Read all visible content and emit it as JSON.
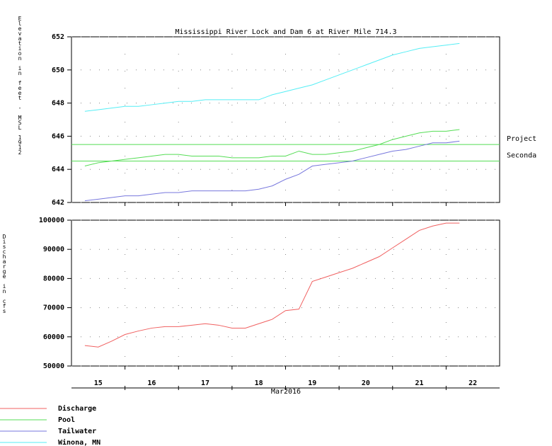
{
  "chart_data": [
    {
      "type": "line",
      "title": "Mississippi River Lock and Dam 6 at River Mile 714.3",
      "ylabel": "Elevation in feet - MSL 1912",
      "x": [
        15.25,
        15.5,
        15.75,
        16,
        16.25,
        16.5,
        16.75,
        17,
        17.25,
        17.5,
        17.75,
        18,
        18.25,
        18.5,
        18.75,
        19,
        19.25,
        19.5,
        19.75,
        20,
        20.25,
        20.5,
        20.75,
        21,
        21.25,
        21.5,
        21.75,
        22,
        22.25
      ],
      "xlim": [
        15,
        23
      ],
      "xminor": [
        16,
        17,
        18,
        19,
        20,
        21,
        22
      ],
      "ylim": [
        642,
        652
      ],
      "yticks": [
        642,
        644,
        646,
        648,
        650,
        652
      ],
      "grid": true,
      "hlines": [
        {
          "value": 645.5,
          "label": "Project"
        },
        {
          "value": 644.5,
          "label": "Seconda"
        }
      ],
      "hline_color": "#55dd55",
      "series": [
        {
          "name": "Pool",
          "color": "#55dd55",
          "values": [
            644.2,
            644.4,
            644.5,
            644.6,
            644.7,
            644.8,
            644.9,
            644.9,
            644.8,
            644.8,
            644.8,
            644.7,
            644.7,
            644.7,
            644.8,
            644.8,
            645.1,
            644.9,
            644.9,
            645.0,
            645.1,
            645.3,
            645.5,
            645.8,
            646.0,
            646.2,
            646.3,
            646.3,
            646.4
          ]
        },
        {
          "name": "Tailwater",
          "color": "#7777dd",
          "values": [
            642.1,
            642.2,
            642.3,
            642.4,
            642.4,
            642.5,
            642.6,
            642.6,
            642.7,
            642.7,
            642.7,
            642.7,
            642.7,
            642.8,
            643.0,
            643.4,
            643.7,
            644.2,
            644.3,
            644.4,
            644.5,
            644.7,
            644.9,
            645.1,
            645.2,
            645.4,
            645.6,
            645.6,
            645.7
          ]
        },
        {
          "name": "Winona, MN",
          "color": "#55eef5",
          "values": [
            647.5,
            647.6,
            647.7,
            647.8,
            647.8,
            647.9,
            648.0,
            648.1,
            648.1,
            648.2,
            648.2,
            648.2,
            648.2,
            648.2,
            648.5,
            648.7,
            648.9,
            649.1,
            649.4,
            649.7,
            650.0,
            650.3,
            650.6,
            650.9,
            651.1,
            651.3,
            651.4,
            651.5,
            651.6
          ]
        }
      ]
    },
    {
      "type": "line",
      "ylabel": "Discharge in cfs",
      "xlabel": "Mar2016",
      "x": [
        15.25,
        15.5,
        15.75,
        16,
        16.25,
        16.5,
        16.75,
        17,
        17.25,
        17.5,
        17.75,
        18,
        18.25,
        18.5,
        18.75,
        19,
        19.25,
        19.5,
        19.75,
        20,
        20.25,
        20.5,
        20.75,
        21,
        21.25,
        21.5,
        21.75,
        22,
        22.25
      ],
      "xlim": [
        15,
        23
      ],
      "xminor": [
        16,
        17,
        18,
        19,
        20,
        21,
        22
      ],
      "xticks": [
        {
          "value": 15.5,
          "label": "15"
        },
        {
          "value": 16.5,
          "label": "16"
        },
        {
          "value": 17.5,
          "label": "17"
        },
        {
          "value": 18.5,
          "label": "18"
        },
        {
          "value": 19.5,
          "label": "19"
        },
        {
          "value": 20.5,
          "label": "20"
        },
        {
          "value": 21.5,
          "label": "21"
        },
        {
          "value": 22.5,
          "label": "22"
        }
      ],
      "ylim": [
        50000,
        100000
      ],
      "yticks": [
        50000,
        60000,
        70000,
        80000,
        90000,
        100000
      ],
      "grid": true,
      "series": [
        {
          "name": "Discharge",
          "color": "#f06060",
          "values": [
            57000,
            56500,
            58500,
            60800,
            62000,
            63000,
            63500,
            63500,
            64000,
            64500,
            64000,
            63000,
            63000,
            64500,
            66000,
            69000,
            69500,
            79000,
            80500,
            82000,
            83500,
            85500,
            87500,
            90500,
            93500,
            96500,
            98000,
            99000,
            99000
          ]
        }
      ]
    }
  ]
}
